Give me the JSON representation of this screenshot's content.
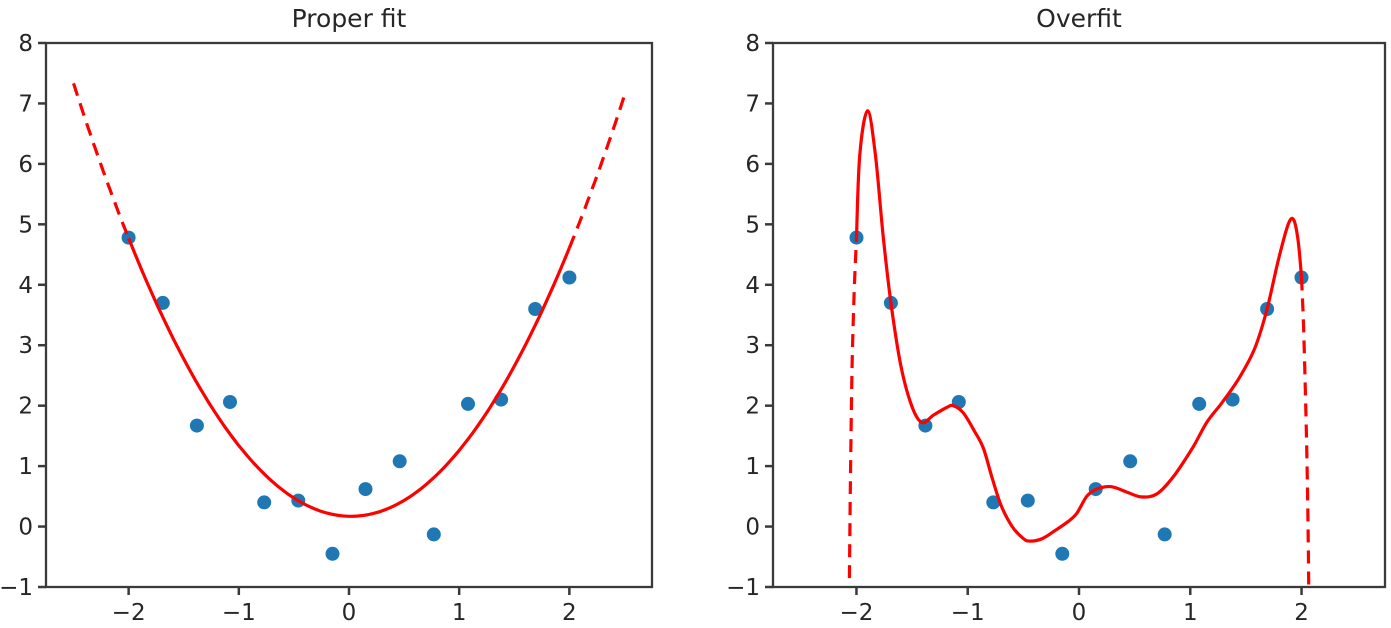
{
  "figure": {
    "background": "#ffffff"
  },
  "colors": {
    "scatter_point": "#1f77b4",
    "fit_curve": "#ff0000",
    "axis": "#3a3a3a",
    "text": "#262626"
  },
  "chart_data": [
    {
      "type": "scatter",
      "title": "Proper fit",
      "xlabel": "",
      "ylabel": "",
      "xlim": [
        -2.75,
        2.75
      ],
      "ylim": [
        -1,
        8
      ],
      "x_ticks": [
        -2,
        -1,
        0,
        1,
        2
      ],
      "y_ticks": [
        -1,
        0,
        1,
        2,
        3,
        4,
        5,
        6,
        7,
        8
      ],
      "grid": false,
      "legend_position": "none",
      "scatter": {
        "x": [
          -2.0,
          -1.69,
          -1.38,
          -1.08,
          -0.77,
          -0.46,
          -0.15,
          0.15,
          0.46,
          0.77,
          1.08,
          1.38,
          1.69,
          2.0
        ],
        "y": [
          4.78,
          3.7,
          1.67,
          2.06,
          0.4,
          0.43,
          -0.45,
          0.62,
          1.08,
          -0.13,
          2.03,
          2.1,
          3.6,
          4.12
        ]
      },
      "fit": {
        "kind": "quadratic",
        "coeffs": {
          "a": 1.13,
          "b": -0.04,
          "c": 0.17
        },
        "solid_range": [
          -2.0,
          2.0
        ],
        "full_range": [
          -2.5,
          2.5
        ],
        "solid_style": "solid",
        "extrapolation_style": "dashed"
      }
    },
    {
      "type": "scatter",
      "title": "Overfit",
      "xlabel": "",
      "ylabel": "",
      "xlim": [
        -2.75,
        2.75
      ],
      "ylim": [
        -1,
        8
      ],
      "x_ticks": [
        -2,
        -1,
        0,
        1,
        2
      ],
      "y_ticks": [
        -1,
        0,
        1,
        2,
        3,
        4,
        5,
        6,
        7,
        8
      ],
      "grid": false,
      "legend_position": "none",
      "scatter": {
        "x": [
          -2.0,
          -1.69,
          -1.38,
          -1.08,
          -0.77,
          -0.46,
          -0.15,
          0.15,
          0.46,
          0.77,
          1.08,
          1.38,
          1.69,
          2.0
        ],
        "y": [
          4.78,
          3.7,
          1.67,
          2.06,
          0.4,
          0.43,
          -0.45,
          0.62,
          1.08,
          -0.13,
          2.03,
          2.1,
          3.6,
          4.12
        ]
      },
      "fit": {
        "kind": "spline",
        "solid_points": [
          [
            -2.0,
            4.78
          ],
          [
            -1.97,
            6.15
          ],
          [
            -1.9,
            6.88
          ],
          [
            -1.83,
            6.15
          ],
          [
            -1.76,
            4.8
          ],
          [
            -1.69,
            3.7
          ],
          [
            -1.6,
            2.65
          ],
          [
            -1.5,
            1.98
          ],
          [
            -1.41,
            1.72
          ],
          [
            -1.31,
            1.84
          ],
          [
            -1.19,
            1.97
          ],
          [
            -1.13,
            2.0
          ],
          [
            -1.04,
            1.88
          ],
          [
            -0.94,
            1.58
          ],
          [
            -0.86,
            1.3
          ],
          [
            -0.78,
            0.8
          ],
          [
            -0.7,
            0.35
          ],
          [
            -0.6,
            0.0
          ],
          [
            -0.5,
            -0.2
          ],
          [
            -0.44,
            -0.24
          ],
          [
            -0.33,
            -0.2
          ],
          [
            -0.21,
            -0.06
          ],
          [
            -0.1,
            0.08
          ],
          [
            -0.02,
            0.22
          ],
          [
            0.07,
            0.5
          ],
          [
            0.16,
            0.62
          ],
          [
            0.29,
            0.66
          ],
          [
            0.43,
            0.57
          ],
          [
            0.56,
            0.49
          ],
          [
            0.7,
            0.54
          ],
          [
            0.85,
            0.83
          ],
          [
            1.02,
            1.3
          ],
          [
            1.15,
            1.73
          ],
          [
            1.29,
            2.06
          ],
          [
            1.44,
            2.46
          ],
          [
            1.58,
            2.95
          ],
          [
            1.69,
            3.6
          ],
          [
            1.79,
            4.4
          ],
          [
            1.88,
            5.0
          ],
          [
            1.93,
            5.07
          ],
          [
            1.97,
            4.72
          ],
          [
            2.0,
            4.12
          ]
        ],
        "dashed_segments": [
          [
            [
              -2.065,
              -1.2
            ],
            [
              -2.055,
              0.6
            ],
            [
              -2.04,
              2.6
            ],
            [
              -2.02,
              3.9
            ],
            [
              -2.0,
              4.78
            ]
          ],
          [
            [
              2.0,
              4.12
            ],
            [
              2.02,
              3.2
            ],
            [
              2.045,
              1.4
            ],
            [
              2.06,
              -0.2
            ],
            [
              2.065,
              -1.2
            ]
          ]
        ]
      }
    }
  ]
}
